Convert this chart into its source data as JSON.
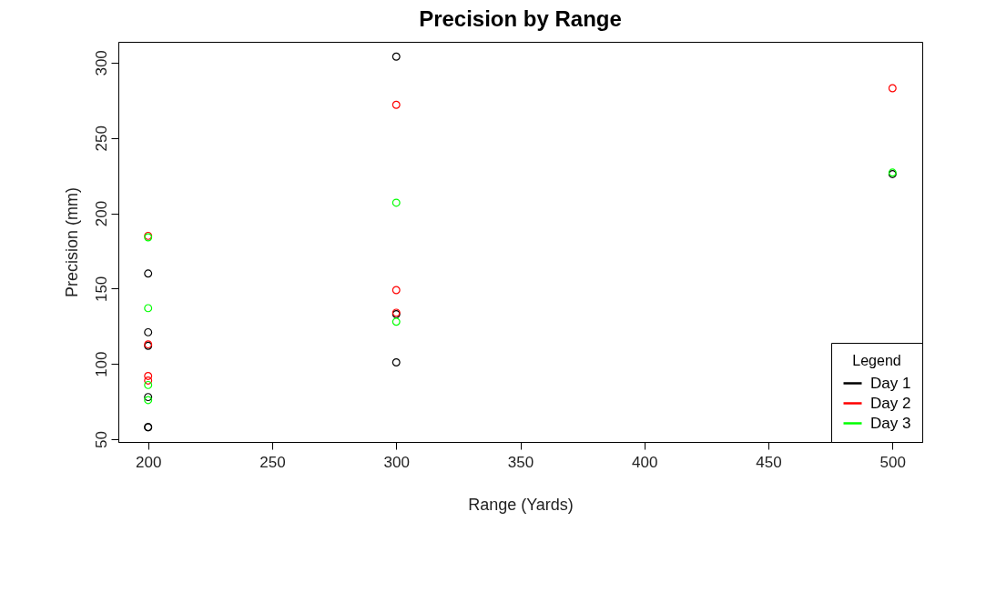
{
  "chart_data": {
    "type": "scatter",
    "title": "Precision by Range",
    "xlabel": "Range (Yards)",
    "ylabel": "Precision (mm)",
    "legend_title": "Legend",
    "xlim": [
      188,
      512
    ],
    "xticks": [
      200,
      250,
      300,
      350,
      400,
      450,
      500
    ],
    "ylim": [
      48.2,
      313.8
    ],
    "yticks": [
      50,
      100,
      150,
      200,
      250,
      300
    ],
    "grid": false,
    "legend": "bottom right",
    "marker": "circle",
    "series": [
      {
        "name": "Day 1",
        "color": "#000000",
        "x": [
          200,
          200,
          200,
          200,
          200,
          200,
          300,
          300,
          300,
          500
        ],
        "values": [
          160,
          121,
          112,
          78,
          58,
          58,
          304,
          133,
          101,
          226
        ]
      },
      {
        "name": "Day 2",
        "color": "#ff0000",
        "x": [
          200,
          200,
          200,
          200,
          300,
          300,
          300,
          500
        ],
        "values": [
          185,
          113,
          92,
          89,
          272,
          149,
          134,
          283
        ]
      },
      {
        "name": "Day 3",
        "color": "#00ff00",
        "x": [
          200,
          200,
          200,
          200,
          300,
          300,
          500
        ],
        "values": [
          184,
          137,
          86,
          76,
          207,
          128,
          227
        ]
      }
    ]
  }
}
